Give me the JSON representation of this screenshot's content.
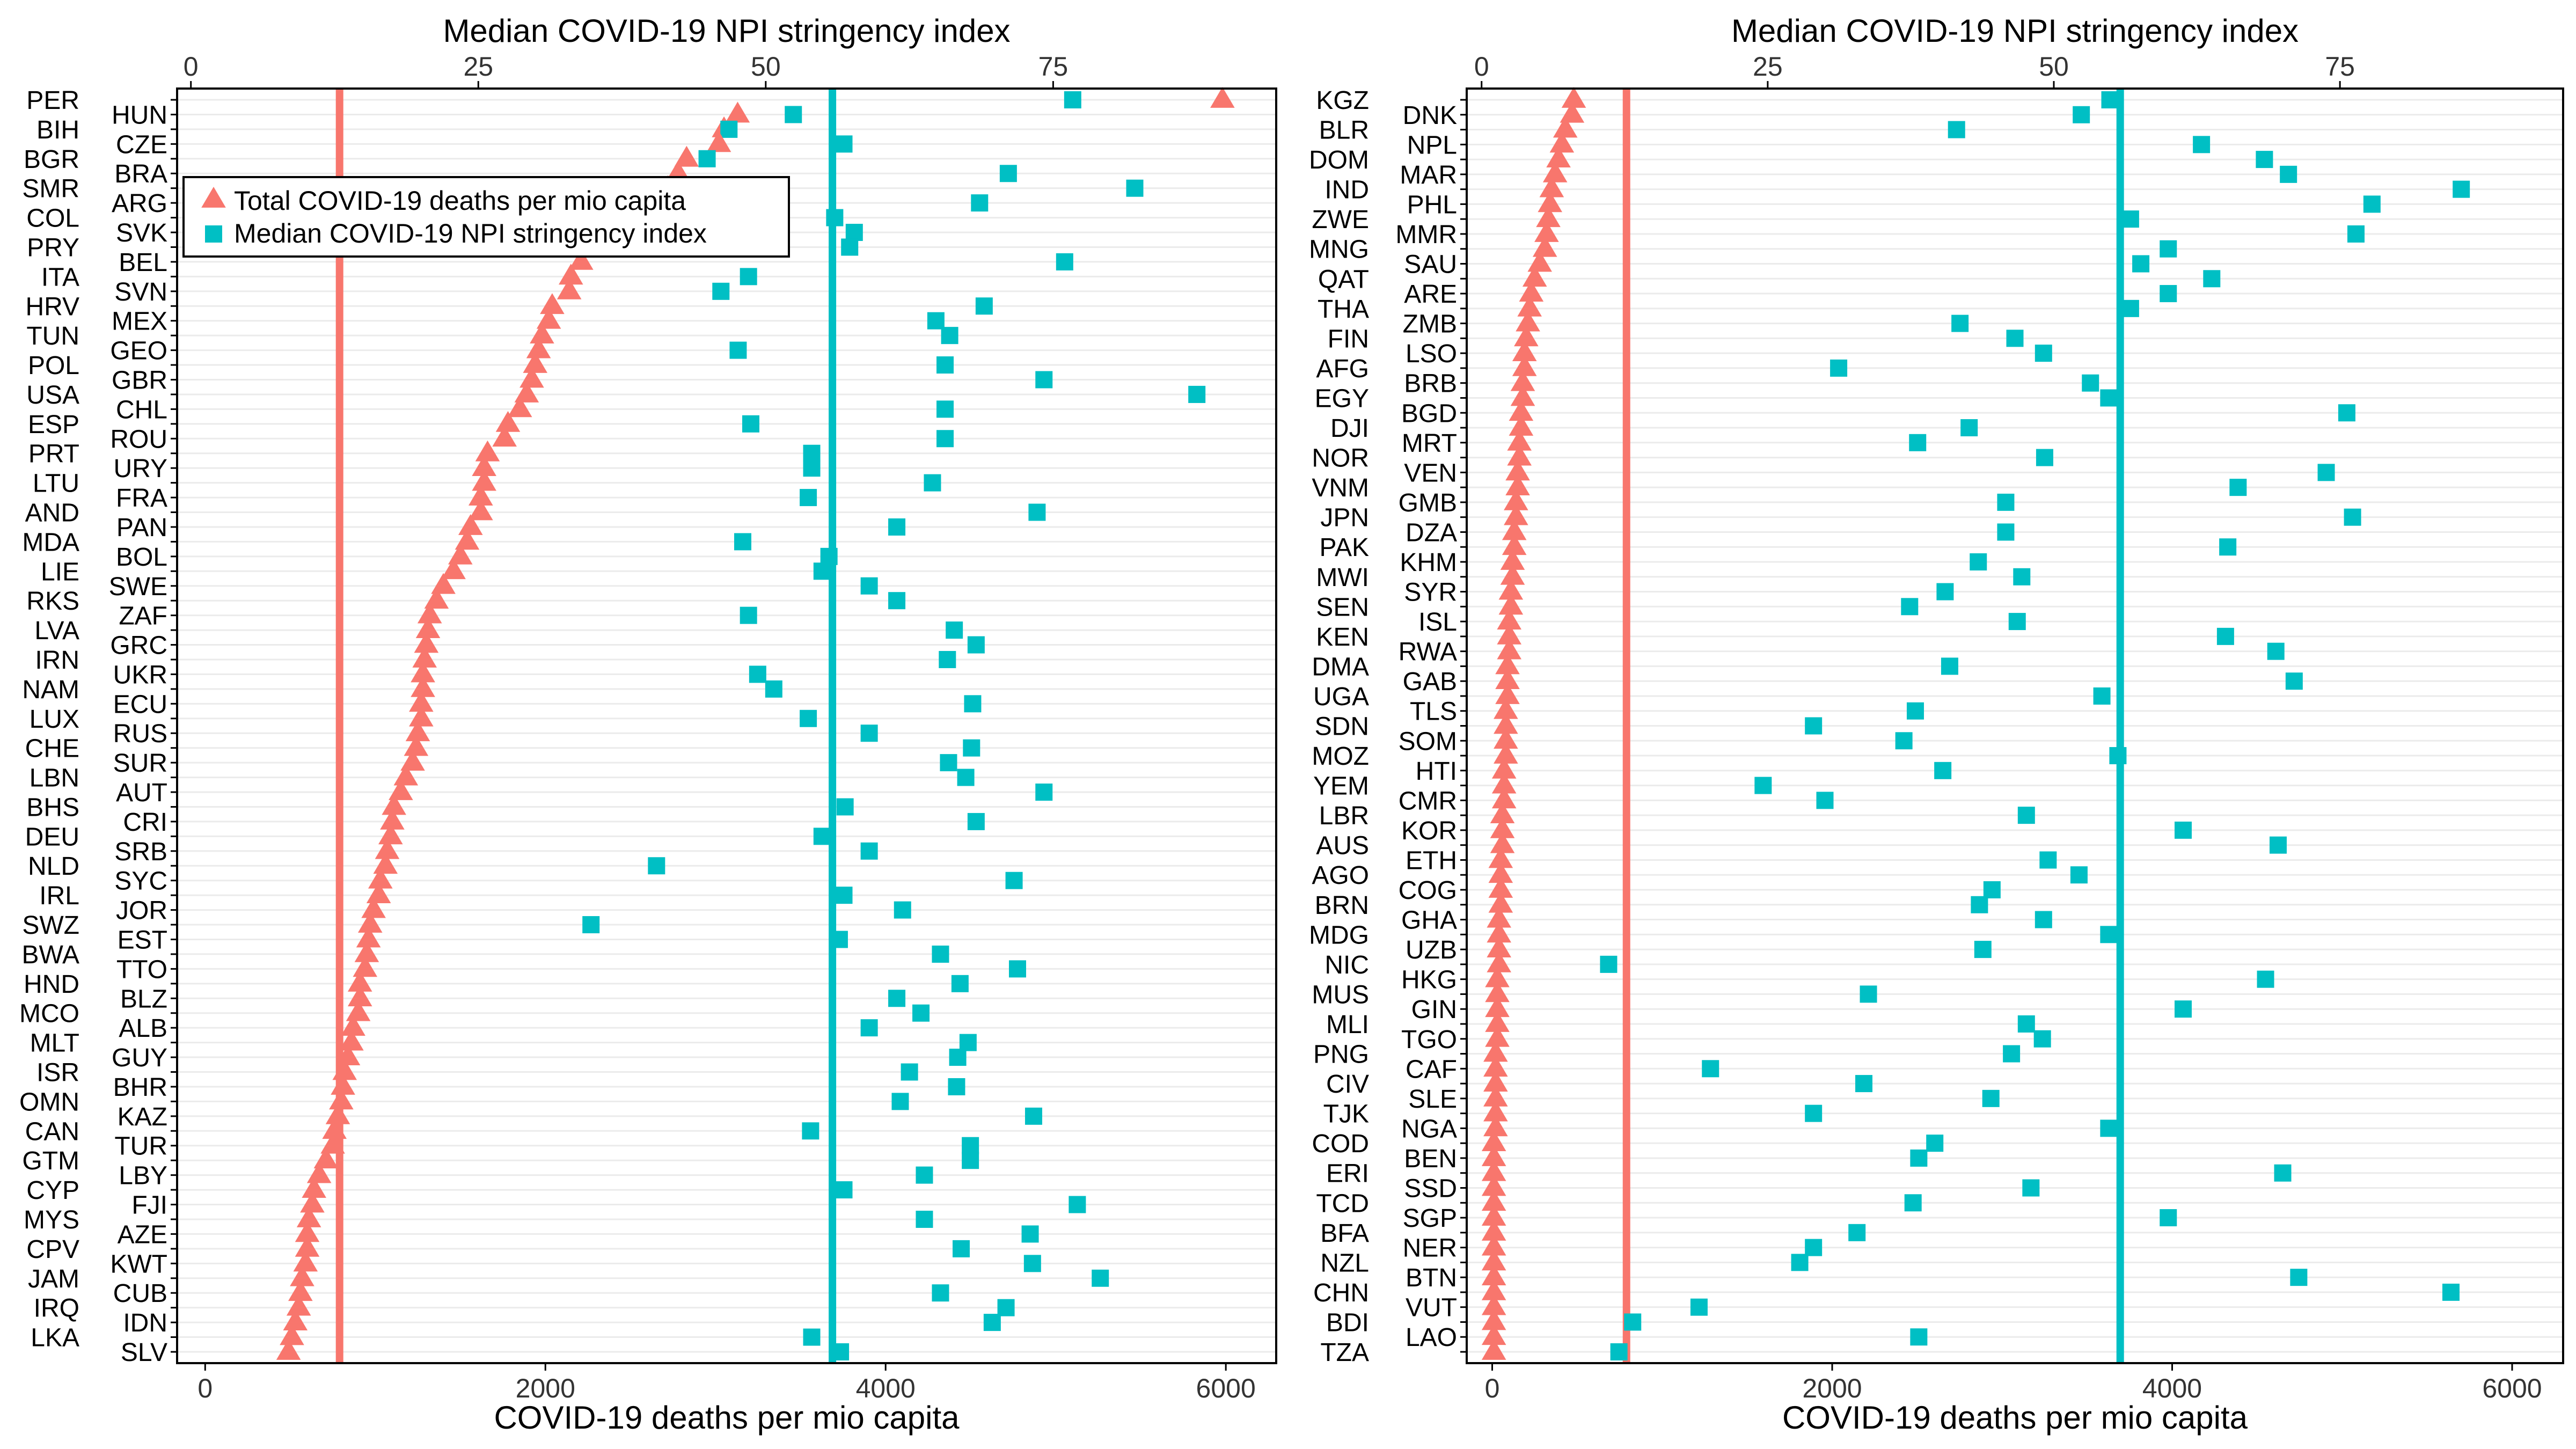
{
  "colors": {
    "deaths": "#F8766D",
    "stringency": "#00BFC4",
    "grid": "#EBEBEB",
    "axis": "#000000"
  },
  "legend": {
    "deaths_label": "Total COVID-19 deaths per mio capita",
    "stringency_label": "Median COVID-19 NPI stringency index"
  },
  "chart_data": [
    {
      "type": "scatter",
      "panel": "left",
      "x_top_label": "Median COVID-19 NPI stringency index",
      "x_top_ticks": [
        0,
        25,
        50,
        75
      ],
      "x_top_lim": [
        -1.2,
        94.4
      ],
      "x_bottom_label": "COVID-19 deaths per mio capita",
      "x_bottom_ticks": [
        0,
        2000,
        4000,
        6000
      ],
      "x_bottom_lim": [
        -165,
        6296
      ],
      "reference_lines": {
        "deaths_median": 790,
        "stringency_median": 55.8
      },
      "legend_position": "top-left inside",
      "countries": [
        "PER",
        "HUN",
        "BIH",
        "CZE",
        "BGR",
        "BRA",
        "SMR",
        "ARG",
        "COL",
        "SVK",
        "PRY",
        "BEL",
        "ITA",
        "SVN",
        "HRV",
        "MEX",
        "TUN",
        "GEO",
        "POL",
        "GBR",
        "USA",
        "CHL",
        "ESP",
        "ROU",
        "PRT",
        "URY",
        "LTU",
        "FRA",
        "AND",
        "PAN",
        "MDA",
        "BOL",
        "LIE",
        "SWE",
        "RKS",
        "ZAF",
        "LVA",
        "GRC",
        "IRN",
        "UKR",
        "NAM",
        "ECU",
        "LUX",
        "RUS",
        "CHE",
        "SUR",
        "LBN",
        "AUT",
        "BHS",
        "CRI",
        "DEU",
        "SRB",
        "NLD",
        "SYC",
        "IRL",
        "JOR",
        "SWZ",
        "EST",
        "BWA",
        "TTO",
        "HND",
        "BLZ",
        "MCO",
        "ALB",
        "MLT",
        "GUY",
        "ISR",
        "BHR",
        "OMN",
        "KAZ",
        "CAN",
        "TUR",
        "GTM",
        "LBY",
        "CYP",
        "FJI",
        "MYS",
        "AZE",
        "CPV",
        "KWT",
        "JAM",
        "CUB",
        "IRQ",
        "IDN",
        "LKA",
        "SLV"
      ],
      "deaths": [
        5980,
        3130,
        3050,
        3020,
        2830,
        2780,
        2720,
        2700,
        2640,
        2480,
        2290,
        2210,
        2150,
        2140,
        2040,
        2020,
        1980,
        1960,
        1940,
        1920,
        1890,
        1850,
        1780,
        1760,
        1660,
        1640,
        1640,
        1620,
        1620,
        1560,
        1540,
        1500,
        1460,
        1400,
        1360,
        1320,
        1310,
        1300,
        1290,
        1280,
        1280,
        1270,
        1270,
        1250,
        1240,
        1220,
        1180,
        1150,
        1110,
        1100,
        1090,
        1070,
        1060,
        1030,
        1020,
        990,
        970,
        960,
        950,
        940,
        910,
        910,
        900,
        870,
        860,
        840,
        820,
        810,
        800,
        780,
        760,
        750,
        710,
        670,
        640,
        630,
        610,
        600,
        600,
        590,
        570,
        560,
        550,
        530,
        510,
        490
      ],
      "stringency": [
        76.7,
        52.4,
        46.8,
        56.8,
        44.9,
        71.1,
        82.1,
        68.6,
        56.0,
        57.7,
        57.3,
        76.0,
        48.5,
        46.1,
        69.0,
        64.8,
        66.0,
        47.6,
        65.6,
        74.2,
        87.5,
        65.6,
        48.7,
        65.6,
        54.0,
        54.0,
        64.5,
        53.7,
        73.6,
        61.4,
        48.0,
        55.5,
        54.9,
        59.0,
        61.4,
        48.5,
        66.4,
        68.3,
        65.8,
        49.3,
        50.7,
        68.0,
        53.7,
        59.0,
        67.9,
        65.9,
        67.4,
        74.2,
        56.9,
        68.3,
        54.9,
        59.0,
        40.5,
        71.6,
        56.8,
        61.9,
        34.8,
        56.4,
        65.2,
        71.9,
        66.9,
        61.4,
        63.5,
        59.0,
        67.6,
        66.7,
        62.5,
        66.6,
        61.7,
        73.3,
        53.9,
        67.8,
        67.8,
        63.8,
        56.8,
        77.1,
        63.8,
        73.0,
        67.0,
        73.2,
        79.1,
        65.2,
        70.9,
        69.7,
        54.0,
        56.5
      ]
    },
    {
      "type": "scatter",
      "panel": "right",
      "x_top_label": "Median COVID-19 NPI stringency index",
      "x_top_ticks": [
        0,
        25,
        50,
        75
      ],
      "x_top_lim": [
        -1.3,
        94.5
      ],
      "x_bottom_label": "COVID-19 deaths per mio capita",
      "x_bottom_ticks": [
        0,
        2000,
        4000,
        6000
      ],
      "x_bottom_lim": [
        -150,
        6300
      ],
      "reference_lines": {
        "deaths_median": 790,
        "stringency_median": 55.8
      },
      "countries": [
        "KGZ",
        "DNK",
        "BLR",
        "NPL",
        "DOM",
        "MAR",
        "IND",
        "PHL",
        "ZWE",
        "MMR",
        "MNG",
        "SAU",
        "QAT",
        "ARE",
        "THA",
        "ZMB",
        "FIN",
        "LSO",
        "AFG",
        "BRB",
        "EGY",
        "BGD",
        "DJI",
        "MRT",
        "NOR",
        "VEN",
        "VNM",
        "GMB",
        "JPN",
        "DZA",
        "PAK",
        "KHM",
        "MWI",
        "SYR",
        "SEN",
        "ISL",
        "KEN",
        "RWA",
        "DMA",
        "GAB",
        "UGA",
        "TLS",
        "SDN",
        "SOM",
        "MOZ",
        "HTI",
        "YEM",
        "CMR",
        "LBR",
        "KOR",
        "AUS",
        "ETH",
        "AGO",
        "COG",
        "BRN",
        "GHA",
        "MDG",
        "UZB",
        "NIC",
        "HKG",
        "MUS",
        "GIN",
        "MLI",
        "TGO",
        "PNG",
        "CAF",
        "CIV",
        "SLE",
        "TJK",
        "NGA",
        "COD",
        "BEN",
        "ERI",
        "SSD",
        "TCD",
        "SGP",
        "BFA",
        "NER",
        "NZL",
        "BTN",
        "CHN",
        "VUT",
        "BDI",
        "LAO",
        "TZA"
      ],
      "deaths": [
        480,
        470,
        430,
        410,
        390,
        370,
        350,
        340,
        330,
        320,
        310,
        280,
        250,
        230,
        220,
        210,
        200,
        190,
        190,
        180,
        180,
        170,
        170,
        160,
        160,
        150,
        150,
        140,
        140,
        130,
        130,
        120,
        120,
        110,
        110,
        100,
        100,
        100,
        90,
        90,
        90,
        80,
        80,
        80,
        80,
        70,
        70,
        70,
        60,
        60,
        60,
        50,
        50,
        50,
        50,
        40,
        40,
        40,
        40,
        30,
        30,
        30,
        30,
        30,
        20,
        20,
        20,
        20,
        20,
        20,
        10,
        10,
        10,
        10,
        10,
        10,
        10,
        10,
        10,
        10,
        10,
        10,
        10,
        10,
        10
      ],
      "stringency": [
        54.9,
        52.4,
        41.5,
        62.9,
        68.4,
        70.5,
        85.6,
        77.8,
        56.7,
        76.4,
        60.0,
        57.6,
        63.8,
        60.0,
        56.7,
        41.8,
        46.6,
        49.1,
        31.2,
        53.2,
        54.8,
        75.6,
        42.6,
        38.1,
        49.2,
        73.8,
        66.1,
        45.8,
        76.1,
        45.8,
        65.2,
        43.4,
        47.2,
        40.5,
        37.4,
        46.8,
        65.0,
        69.4,
        40.9,
        71.0,
        54.2,
        37.9,
        29.0,
        36.9,
        55.6,
        40.3,
        24.6,
        30.0,
        47.6,
        61.3,
        69.6,
        49.5,
        52.2,
        44.6,
        43.5,
        49.1,
        54.8,
        43.8,
        11.1,
        68.5,
        33.8,
        61.3,
        47.6,
        49.0,
        46.3,
        20.0,
        33.4,
        44.5,
        29.0,
        54.8,
        39.6,
        38.2,
        70.0,
        48.0,
        37.7,
        60.0,
        32.8,
        29.0,
        27.8,
        71.4,
        84.7,
        19.0,
        13.2,
        38.2,
        12.0
      ]
    }
  ]
}
